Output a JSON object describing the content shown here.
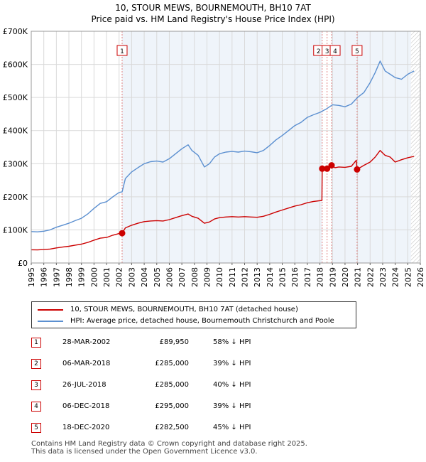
{
  "title_line1": "10, STOUR MEWS, BOURNEMOUTH, BH10 7AT",
  "title_line2": "Price paid vs. HM Land Registry's House Price Index (HPI)",
  "colors": {
    "property": "#cc0000",
    "hpi": "#5b8fd0",
    "grid": "#d9d9d9",
    "band": "#dce6f4",
    "vline": "#e08080"
  },
  "legend": {
    "property_label": "10, STOUR MEWS, BOURNEMOUTH, BH10 7AT (detached house)",
    "hpi_label": "HPI: Average price, detached house, Bournemouth Christchurch and Poole"
  },
  "sales": [
    {
      "num": "1",
      "date": "28-MAR-2002",
      "price": "£89,950",
      "hpi": "58% ↓ HPI"
    },
    {
      "num": "2",
      "date": "06-MAR-2018",
      "price": "£285,000",
      "hpi": "39% ↓ HPI"
    },
    {
      "num": "3",
      "date": "26-JUL-2018",
      "price": "£285,000",
      "hpi": "40% ↓ HPI"
    },
    {
      "num": "4",
      "date": "06-DEC-2018",
      "price": "£295,000",
      "hpi": "39% ↓ HPI"
    },
    {
      "num": "5",
      "date": "18-DEC-2020",
      "price": "£282,500",
      "hpi": "45% ↓ HPI"
    }
  ],
  "footer_line1": "Contains HM Land Registry data © Crown copyright and database right 2025.",
  "footer_line2": "This data is licensed under the Open Government Licence v3.0.",
  "chart_data": {
    "type": "line",
    "title": "10, STOUR MEWS, BOURNEMOUTH, BH10 7AT",
    "subtitle": "Price paid vs. HM Land Registry's House Price Index (HPI)",
    "xlabel": "",
    "ylabel": "",
    "xlim": [
      1995,
      2026
    ],
    "ylim": [
      0,
      700000
    ],
    "x_ticks": [
      1995,
      1996,
      1997,
      1998,
      1999,
      2000,
      2001,
      2002,
      2003,
      2004,
      2005,
      2006,
      2007,
      2008,
      2009,
      2010,
      2011,
      2012,
      2013,
      2014,
      2015,
      2016,
      2017,
      2018,
      2019,
      2020,
      2021,
      2022,
      2023,
      2024,
      2025,
      2026
    ],
    "y_ticks": [
      {
        "value": 0,
        "label": "£0"
      },
      {
        "value": 100000,
        "label": "£100K"
      },
      {
        "value": 200000,
        "label": "£200K"
      },
      {
        "value": 300000,
        "label": "£300K"
      },
      {
        "value": 400000,
        "label": "£400K"
      },
      {
        "value": 500000,
        "label": "£500K"
      },
      {
        "value": 600000,
        "label": "£600K"
      },
      {
        "value": 700000,
        "label": "£700K"
      }
    ],
    "grid": true,
    "projection_start": 2025.25,
    "sale_markers": [
      {
        "label": "1",
        "x": 2002.24,
        "y": 89950
      },
      {
        "label": "2",
        "x": 2018.18,
        "y": 285000
      },
      {
        "label": "3",
        "x": 2018.57,
        "y": 285000
      },
      {
        "label": "4",
        "x": 2018.93,
        "y": 295000
      },
      {
        "label": "5",
        "x": 2020.96,
        "y": 282500
      }
    ],
    "series": [
      {
        "name": "HPI: Average price, detached house, Bournemouth Christchurch and Poole",
        "color": "#5b8fd0",
        "x": [
          1995,
          1995.5,
          1996,
          1996.5,
          1997,
          1997.5,
          1998,
          1998.5,
          1999,
          1999.5,
          2000,
          2000.5,
          2001,
          2001.5,
          2002,
          2002.24,
          2002.5,
          2003,
          2003.5,
          2004,
          2004.5,
          2005,
          2005.5,
          2006,
          2006.5,
          2007,
          2007.5,
          2007.8,
          2008.3,
          2008.8,
          2009.2,
          2009.6,
          2010,
          2010.5,
          2011,
          2011.5,
          2012,
          2012.5,
          2013,
          2013.5,
          2014,
          2014.5,
          2015,
          2015.5,
          2016,
          2016.5,
          2017,
          2017.5,
          2018,
          2018.5,
          2019,
          2019.5,
          2020,
          2020.5,
          2021,
          2021.5,
          2022,
          2022.4,
          2022.8,
          2023.2,
          2023.6,
          2024,
          2024.5,
          2025,
          2025.5
        ],
        "y": [
          95000,
          94000,
          96000,
          100000,
          108000,
          114000,
          120000,
          128000,
          135000,
          148000,
          165000,
          180000,
          185000,
          200000,
          213000,
          215000,
          255000,
          275000,
          288000,
          300000,
          306000,
          308000,
          305000,
          315000,
          330000,
          345000,
          357000,
          340000,
          325000,
          290000,
          300000,
          320000,
          330000,
          335000,
          337000,
          335000,
          338000,
          336000,
          333000,
          340000,
          355000,
          372000,
          385000,
          400000,
          415000,
          425000,
          440000,
          448000,
          455000,
          465000,
          478000,
          476000,
          472000,
          480000,
          500000,
          515000,
          545000,
          575000,
          610000,
          580000,
          570000,
          560000,
          555000,
          570000,
          580000
        ]
      },
      {
        "name": "10, STOUR MEWS, BOURNEMOUTH, BH10 7AT (detached house)",
        "color": "#cc0000",
        "x": [
          1995,
          1995.5,
          1996,
          1996.5,
          1997,
          1997.5,
          1998,
          1998.5,
          1999,
          1999.5,
          2000,
          2000.5,
          2001,
          2001.5,
          2002,
          2002.24,
          2002.5,
          2003,
          2003.5,
          2004,
          2004.5,
          2005,
          2005.5,
          2006,
          2006.5,
          2007,
          2007.5,
          2007.8,
          2008.3,
          2008.8,
          2009.2,
          2009.6,
          2010,
          2010.5,
          2011,
          2011.5,
          2012,
          2012.5,
          2013,
          2013.5,
          2014,
          2014.5,
          2015,
          2015.5,
          2016,
          2016.5,
          2017,
          2017.5,
          2018.16,
          2018.18,
          2018.57,
          2018.93,
          2019.2,
          2019.5,
          2020,
          2020.5,
          2020.9,
          2020.96,
          2021.5,
          2022,
          2022.4,
          2022.8,
          2023.2,
          2023.6,
          2024,
          2024.5,
          2025,
          2025.5
        ],
        "y": [
          40000,
          39500,
          40500,
          42000,
          45500,
          48000,
          50500,
          54000,
          57000,
          62000,
          69000,
          75000,
          77000,
          84000,
          89000,
          89950,
          106000,
          114000,
          120000,
          125000,
          127000,
          128000,
          127000,
          131000,
          137000,
          143000,
          148000,
          141000,
          135000,
          120000,
          124000,
          133000,
          137000,
          139000,
          140000,
          139000,
          140000,
          139000,
          138000,
          141000,
          147000,
          154000,
          160000,
          166000,
          172000,
          176000,
          182000,
          186000,
          189000,
          285000,
          285000,
          295000,
          288000,
          290000,
          289000,
          292000,
          310000,
          282500,
          295000,
          305000,
          320000,
          340000,
          325000,
          320000,
          305000,
          312000,
          318000,
          322000
        ]
      }
    ]
  }
}
